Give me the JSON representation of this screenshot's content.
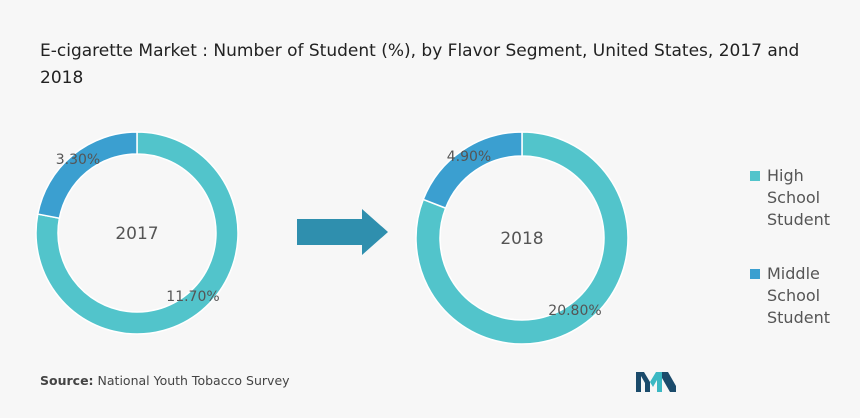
{
  "title": "E-cigarette Market : Number of Student (%), by Flavor Segment, United States, 2017 and 2018",
  "source": {
    "label": "Source:",
    "text": "National Youth Tobacco Survey"
  },
  "colors": {
    "high_school": "#52c4cb",
    "middle_school": "#3b9fd0",
    "arrow": "#2f8fae",
    "logo_dark": "#1b4b6b",
    "logo_light": "#3bb8c3"
  },
  "chart_data": [
    {
      "type": "pie",
      "center_label": "2017",
      "categories": [
        "High School Student",
        "Middle School Student"
      ],
      "values": [
        11.7,
        3.3
      ],
      "value_labels": [
        "11.70%",
        "3.30%"
      ]
    },
    {
      "type": "pie",
      "center_label": "2018",
      "categories": [
        "High School Student",
        "Middle School Student"
      ],
      "values": [
        20.8,
        4.9
      ],
      "value_labels": [
        "20.80%",
        "4.90%"
      ]
    }
  ],
  "legend": [
    {
      "label": "High School Student",
      "color": "#52c4cb"
    },
    {
      "label": "Middle School Student",
      "color": "#3b9fd0"
    }
  ]
}
